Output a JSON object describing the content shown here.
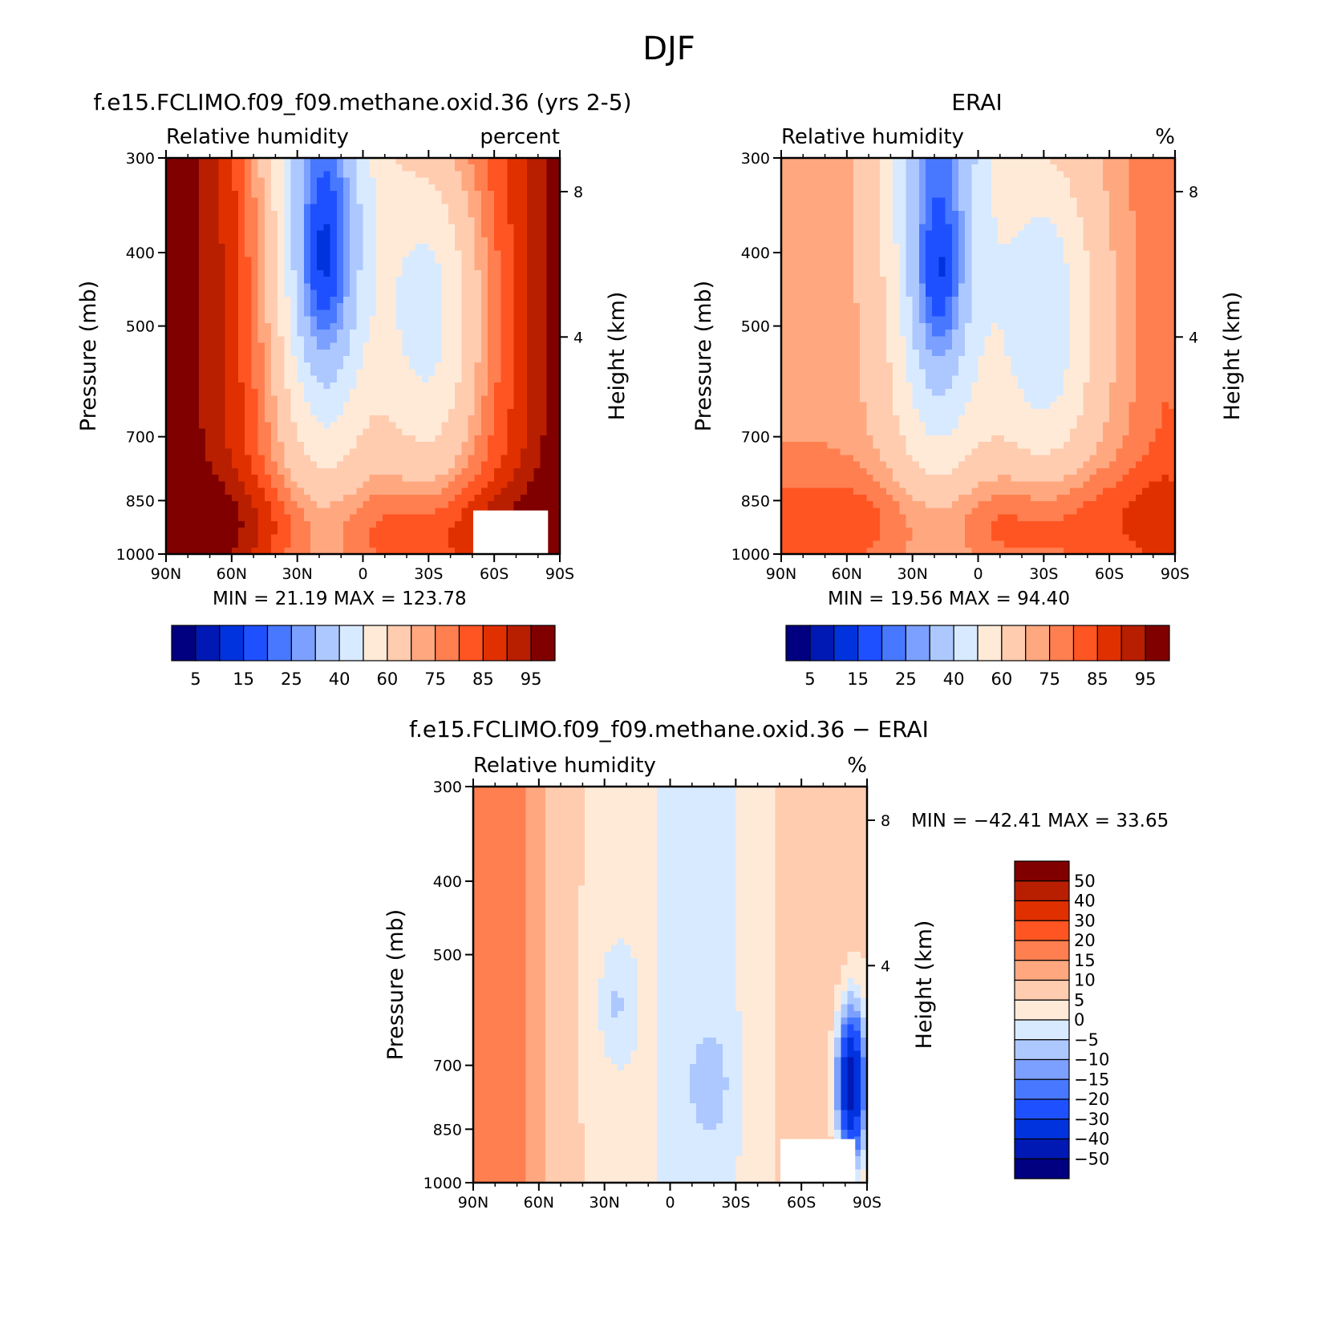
{
  "figure": {
    "title": "DJF"
  },
  "chart_data": [
    {
      "type": "heatmap",
      "panel": "model",
      "title": "f.e15.FCLIMO.f09_f09.methane.oxid.36 (yrs 2-5)",
      "subtitle_left": "Relative humidity",
      "subtitle_right": "percent",
      "ylabel": "Pressure (mb)",
      "ylabel_right": "Height (km)",
      "x_ticks": [
        "90N",
        "60N",
        "30N",
        "0",
        "30S",
        "60S",
        "90S"
      ],
      "y_ticks": [
        "300",
        "400",
        "500",
        "700",
        "850",
        "1000"
      ],
      "y_ticks_right": [
        "8",
        "4"
      ],
      "stats": {
        "min_label": "MIN =",
        "min": "21.19",
        "max_label": "MAX =",
        "max": "123.78"
      },
      "colorbar": {
        "orientation": "horizontal",
        "labels": [
          "5",
          "15",
          "25",
          "40",
          "60",
          "75",
          "85",
          "95"
        ],
        "colors": [
          "#000080",
          "#0019B4",
          "#0033DD",
          "#1E50FF",
          "#4878FF",
          "#7CA0FF",
          "#ADC8FF",
          "#D8EAFF",
          "#FFEAD8",
          "#FFCCB0",
          "#FFA880",
          "#FF7F50",
          "#FF5522",
          "#E03000",
          "#B81E00",
          "#800000"
        ]
      },
      "ylim": [
        1000,
        300
      ],
      "xlim": [
        90,
        -90
      ]
    },
    {
      "type": "heatmap",
      "panel": "obs",
      "title": "ERAI",
      "subtitle_left": "Relative humidity",
      "subtitle_right": "%",
      "ylabel": "Pressure (mb)",
      "ylabel_right": "Height (km)",
      "x_ticks": [
        "90N",
        "60N",
        "30N",
        "0",
        "30S",
        "60S",
        "90S"
      ],
      "y_ticks": [
        "300",
        "400",
        "500",
        "700",
        "850",
        "1000"
      ],
      "y_ticks_right": [
        "8",
        "4"
      ],
      "stats": {
        "min_label": "MIN =",
        "min": "19.56",
        "max_label": "MAX =",
        "max": "94.40"
      },
      "colorbar": {
        "orientation": "horizontal",
        "labels": [
          "5",
          "15",
          "25",
          "40",
          "60",
          "75",
          "85",
          "95"
        ],
        "colors": [
          "#000080",
          "#0019B4",
          "#0033DD",
          "#1E50FF",
          "#4878FF",
          "#7CA0FF",
          "#ADC8FF",
          "#D8EAFF",
          "#FFEAD8",
          "#FFCCB0",
          "#FFA880",
          "#FF7F50",
          "#FF5522",
          "#E03000",
          "#B81E00",
          "#800000"
        ]
      },
      "ylim": [
        1000,
        300
      ],
      "xlim": [
        90,
        -90
      ]
    },
    {
      "type": "heatmap",
      "panel": "diff",
      "title": "f.e15.FCLIMO.f09_f09.methane.oxid.36 - ERAI",
      "subtitle_left": "Relative humidity",
      "subtitle_right": "%",
      "ylabel": "Pressure (mb)",
      "ylabel_right": "Height (km)",
      "x_ticks": [
        "90N",
        "60N",
        "30N",
        "0",
        "30S",
        "60S",
        "90S"
      ],
      "y_ticks": [
        "300",
        "400",
        "500",
        "700",
        "850",
        "1000"
      ],
      "y_ticks_right": [
        "8",
        "4"
      ],
      "stats": {
        "min_label": "MIN =",
        "min": "-42.41",
        "max_label": "MAX =",
        "max": "33.65"
      },
      "colorbar": {
        "orientation": "vertical",
        "labels": [
          "50",
          "40",
          "30",
          "20",
          "15",
          "10",
          "5",
          "0",
          "-5",
          "-10",
          "-15",
          "-20",
          "-30",
          "-40",
          "-50"
        ],
        "colors": [
          "#800000",
          "#B81E00",
          "#E03000",
          "#FF5522",
          "#FF7F50",
          "#FFA880",
          "#FFCCB0",
          "#FFEAD8",
          "#D8EAFF",
          "#ADC8FF",
          "#7CA0FF",
          "#4878FF",
          "#1E50FF",
          "#0033DD",
          "#0019B4",
          "#000080"
        ]
      },
      "ylim": [
        1000,
        300
      ],
      "xlim": [
        90,
        -90
      ]
    }
  ]
}
